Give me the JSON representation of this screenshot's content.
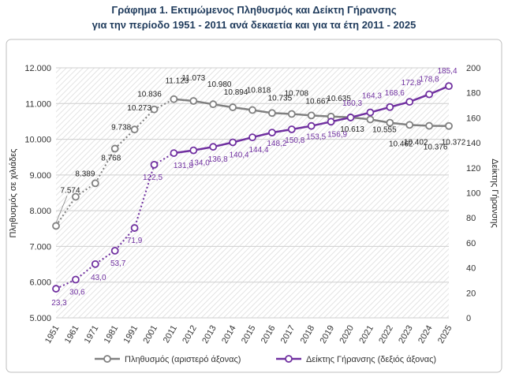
{
  "chart_data": {
    "type": "line",
    "title_line1": "Γράφημα 1. Εκτιμώμενος Πληθυσμός και Δείκτη Γήρανσης",
    "title_line2": "για την περίοδο 1951 - 2011 ανά δεκαετία και για τα έτη 2011 - 2025",
    "x": [
      "1951",
      "1961",
      "1971",
      "1981",
      "1991",
      "2001",
      "2011",
      "2012",
      "2013",
      "2014",
      "2015",
      "2016",
      "2017",
      "2018",
      "2019",
      "2020",
      "2021",
      "2022",
      "2023",
      "2024",
      "2025"
    ],
    "y_left": {
      "label": "Πληθυσμός σε χιλιάδες",
      "ticks": [
        "5.000",
        "6.000",
        "7.000",
        "8.000",
        "9.000",
        "10.000",
        "11.000",
        "12.000"
      ],
      "range": [
        5000,
        12000
      ]
    },
    "y_right": {
      "label": "Δείκτης Γήρανσης",
      "ticks": [
        "0",
        "20",
        "40",
        "60",
        "80",
        "100",
        "120",
        "140",
        "160",
        "180",
        "200"
      ],
      "range": [
        0,
        200
      ]
    },
    "grid": true,
    "legend_position": "bottom",
    "series": [
      {
        "name": "Πληθυσμός (αριστερό άξονας)",
        "axis": "left",
        "color": "#808080",
        "values": [
          7574,
          8389,
          8768,
          9738,
          10273,
          10836,
          11123,
          11073,
          10980,
          10894,
          10818,
          10735,
          10708,
          10667,
          10635,
          10613,
          10555,
          10462,
          10402,
          10376,
          10372
        ],
        "labels": [
          "7.574",
          "8.389",
          "8.768",
          "9.738",
          "10.273",
          "10.836",
          "11.123",
          "11.073",
          "10.980",
          "10.894",
          "10.818",
          "10.735",
          "10.708",
          "10.667",
          "10.635",
          "10.613",
          "10.555",
          "10.462",
          "10.402",
          "10.376",
          "10.372"
        ]
      },
      {
        "name": "Δείκτης Γήρανσης (δεξιός άξονας)",
        "axis": "right",
        "color": "#7030a0",
        "values": [
          23.3,
          30.6,
          43.0,
          53.7,
          71.9,
          122.5,
          131.8,
          134.0,
          136.8,
          140.4,
          144.4,
          148.2,
          150.8,
          153.5,
          156.9,
          160.3,
          164.3,
          168.6,
          172.8,
          178.8,
          185.4
        ],
        "labels": [
          "23,3",
          "30,6",
          "43,0",
          "53,7",
          "71,9",
          "122,5",
          "131,8",
          "134,0",
          "136,8",
          "140,4",
          "144,4",
          "148,2",
          "150,8",
          "153,5",
          "156,9",
          "160,3",
          "164,3",
          "168,6",
          "172,8",
          "178,8",
          "185,4"
        ]
      }
    ]
  }
}
